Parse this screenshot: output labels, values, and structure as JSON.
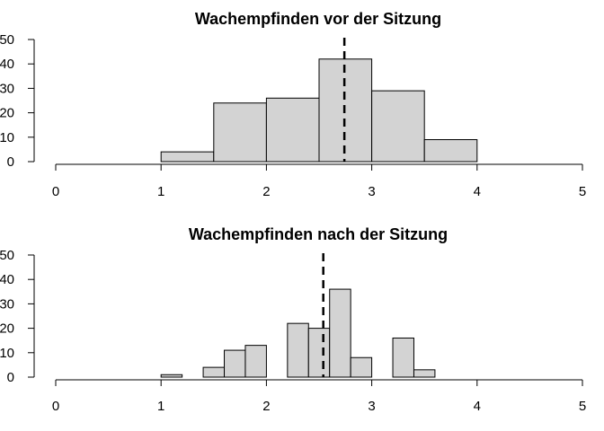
{
  "chart_data": [
    {
      "type": "bar",
      "title": "Wachempfinden vor der Sitzung",
      "bin_width": 0.5,
      "bins": [
        {
          "start": 1.0,
          "end": 1.5,
          "count": 4
        },
        {
          "start": 1.5,
          "end": 2.0,
          "count": 24
        },
        {
          "start": 2.0,
          "end": 2.5,
          "count": 26
        },
        {
          "start": 2.5,
          "end": 3.0,
          "count": 42
        },
        {
          "start": 3.0,
          "end": 3.5,
          "count": 29
        },
        {
          "start": 3.5,
          "end": 4.0,
          "count": 9
        }
      ],
      "mean_line": 2.74,
      "xlim": [
        0,
        5
      ],
      "ylim": [
        0,
        50
      ],
      "xticks": [
        "0",
        "1",
        "2",
        "3",
        "4",
        "5"
      ],
      "yticks": [
        "0",
        "10",
        "20",
        "30",
        "40",
        "50"
      ],
      "bar_color": "#d3d3d3",
      "grid": false
    },
    {
      "type": "bar",
      "title": "Wachempfinden nach der Sitzung",
      "bin_width": 0.2,
      "bins": [
        {
          "start": 1.0,
          "end": 1.2,
          "count": 1
        },
        {
          "start": 1.2,
          "end": 1.4,
          "count": 0
        },
        {
          "start": 1.4,
          "end": 1.6,
          "count": 4
        },
        {
          "start": 1.6,
          "end": 1.8,
          "count": 11
        },
        {
          "start": 1.8,
          "end": 2.0,
          "count": 13
        },
        {
          "start": 2.0,
          "end": 2.2,
          "count": 0
        },
        {
          "start": 2.2,
          "end": 2.4,
          "count": 22
        },
        {
          "start": 2.4,
          "end": 2.6,
          "count": 20
        },
        {
          "start": 2.6,
          "end": 2.8,
          "count": 36
        },
        {
          "start": 2.8,
          "end": 3.0,
          "count": 8
        },
        {
          "start": 3.0,
          "end": 3.2,
          "count": 0
        },
        {
          "start": 3.2,
          "end": 3.4,
          "count": 16
        },
        {
          "start": 3.4,
          "end": 3.6,
          "count": 3
        }
      ],
      "mean_line": 2.54,
      "xlim": [
        0,
        5
      ],
      "ylim": [
        0,
        50
      ],
      "xticks": [
        "0",
        "1",
        "2",
        "3",
        "4",
        "5"
      ],
      "yticks": [
        "0",
        "10",
        "20",
        "30",
        "40",
        "50"
      ],
      "bar_color": "#d3d3d3",
      "grid": false
    }
  ]
}
